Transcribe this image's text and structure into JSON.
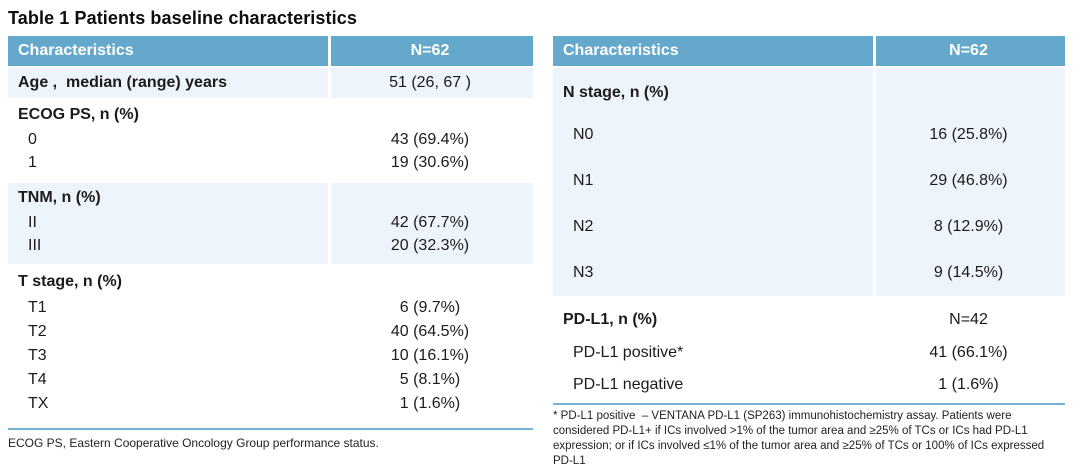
{
  "title": "Table 1 Patients baseline characteristics",
  "colors": {
    "header_bg": "#64a9cc",
    "stripe_bg": "#edf4fb",
    "rule_color": "#74b2d4",
    "header_text": "#ffffff",
    "body_text": "#1b1b1b"
  },
  "left_table": {
    "header": {
      "characteristics": "Characteristics",
      "n": "N=62"
    },
    "sections": [
      {
        "shaded": true,
        "rows": [
          {
            "label": "Age ,  median (range) years",
            "value": "51 (26, 67 )",
            "bold": true,
            "indent": false
          }
        ]
      },
      {
        "shaded": false,
        "rows": [
          {
            "label": "ECOG PS, n (%)",
            "value": "",
            "bold": true,
            "indent": false
          },
          {
            "label": "0",
            "value": "43 (69.4%)",
            "bold": false,
            "indent": true
          },
          {
            "label": "1",
            "value": "19 (30.6%)",
            "bold": false,
            "indent": true
          }
        ]
      },
      {
        "shaded": true,
        "rows": [
          {
            "label": "TNM, n (%)",
            "value": "",
            "bold": true,
            "indent": false
          },
          {
            "label": "II",
            "value": "42 (67.7%)",
            "bold": false,
            "indent": true
          },
          {
            "label": "III",
            "value": "20 (32.3%)",
            "bold": false,
            "indent": true
          }
        ]
      },
      {
        "shaded": false,
        "rows": [
          {
            "label": "T stage, n (%)",
            "value": "",
            "bold": true,
            "indent": false
          },
          {
            "label": "T1",
            "value": "6 (9.7%)",
            "bold": false,
            "indent": true
          },
          {
            "label": "T2",
            "value": "40 (64.5%)",
            "bold": false,
            "indent": true
          },
          {
            "label": "T3",
            "value": "10 (16.1%)",
            "bold": false,
            "indent": true
          },
          {
            "label": "T4",
            "value": "5 (8.1%)",
            "bold": false,
            "indent": true
          },
          {
            "label": "TX",
            "value": "1 (1.6%)",
            "bold": false,
            "indent": true
          }
        ]
      }
    ],
    "footnote": "ECOG PS, Eastern Cooperative Oncology Group performance status."
  },
  "right_table": {
    "header": {
      "characteristics": "Characteristics",
      "n": "N=62"
    },
    "sections": [
      {
        "shaded": true,
        "rows": [
          {
            "label": "N stage, n (%)",
            "value": "",
            "bold": true,
            "indent": false
          },
          {
            "label": "N0",
            "value": "16 (25.8%)",
            "bold": false,
            "indent": true
          },
          {
            "label": "N1",
            "value": "29 (46.8%)",
            "bold": false,
            "indent": true
          },
          {
            "label": "N2",
            "value": "8 (12.9%)",
            "bold": false,
            "indent": true
          },
          {
            "label": "N3",
            "value": "9 (14.5%)",
            "bold": false,
            "indent": true
          }
        ]
      },
      {
        "shaded": false,
        "rows": [
          {
            "label": "PD-L1, n (%)",
            "value": "N=42",
            "bold": true,
            "indent": false
          },
          {
            "label": "PD-L1 positive*",
            "value": "41 (66.1%)",
            "bold": false,
            "indent": true
          },
          {
            "label": "PD-L1 negative",
            "value": "1 (1.6%)",
            "bold": false,
            "indent": true
          }
        ]
      }
    ],
    "footnote": "* PD-L1 positive  – VENTANA PD-L1 (SP263) immunohistochemistry assay. Patients were considered PD-L1+ if ICs involved >1% of the tumor area and ≥25% of TCs or ICs had PD-L1 expression; or if ICs involved ≤1% of the tumor area and ≥25% of TCs or 100% of ICs expressed PD-L1"
  }
}
